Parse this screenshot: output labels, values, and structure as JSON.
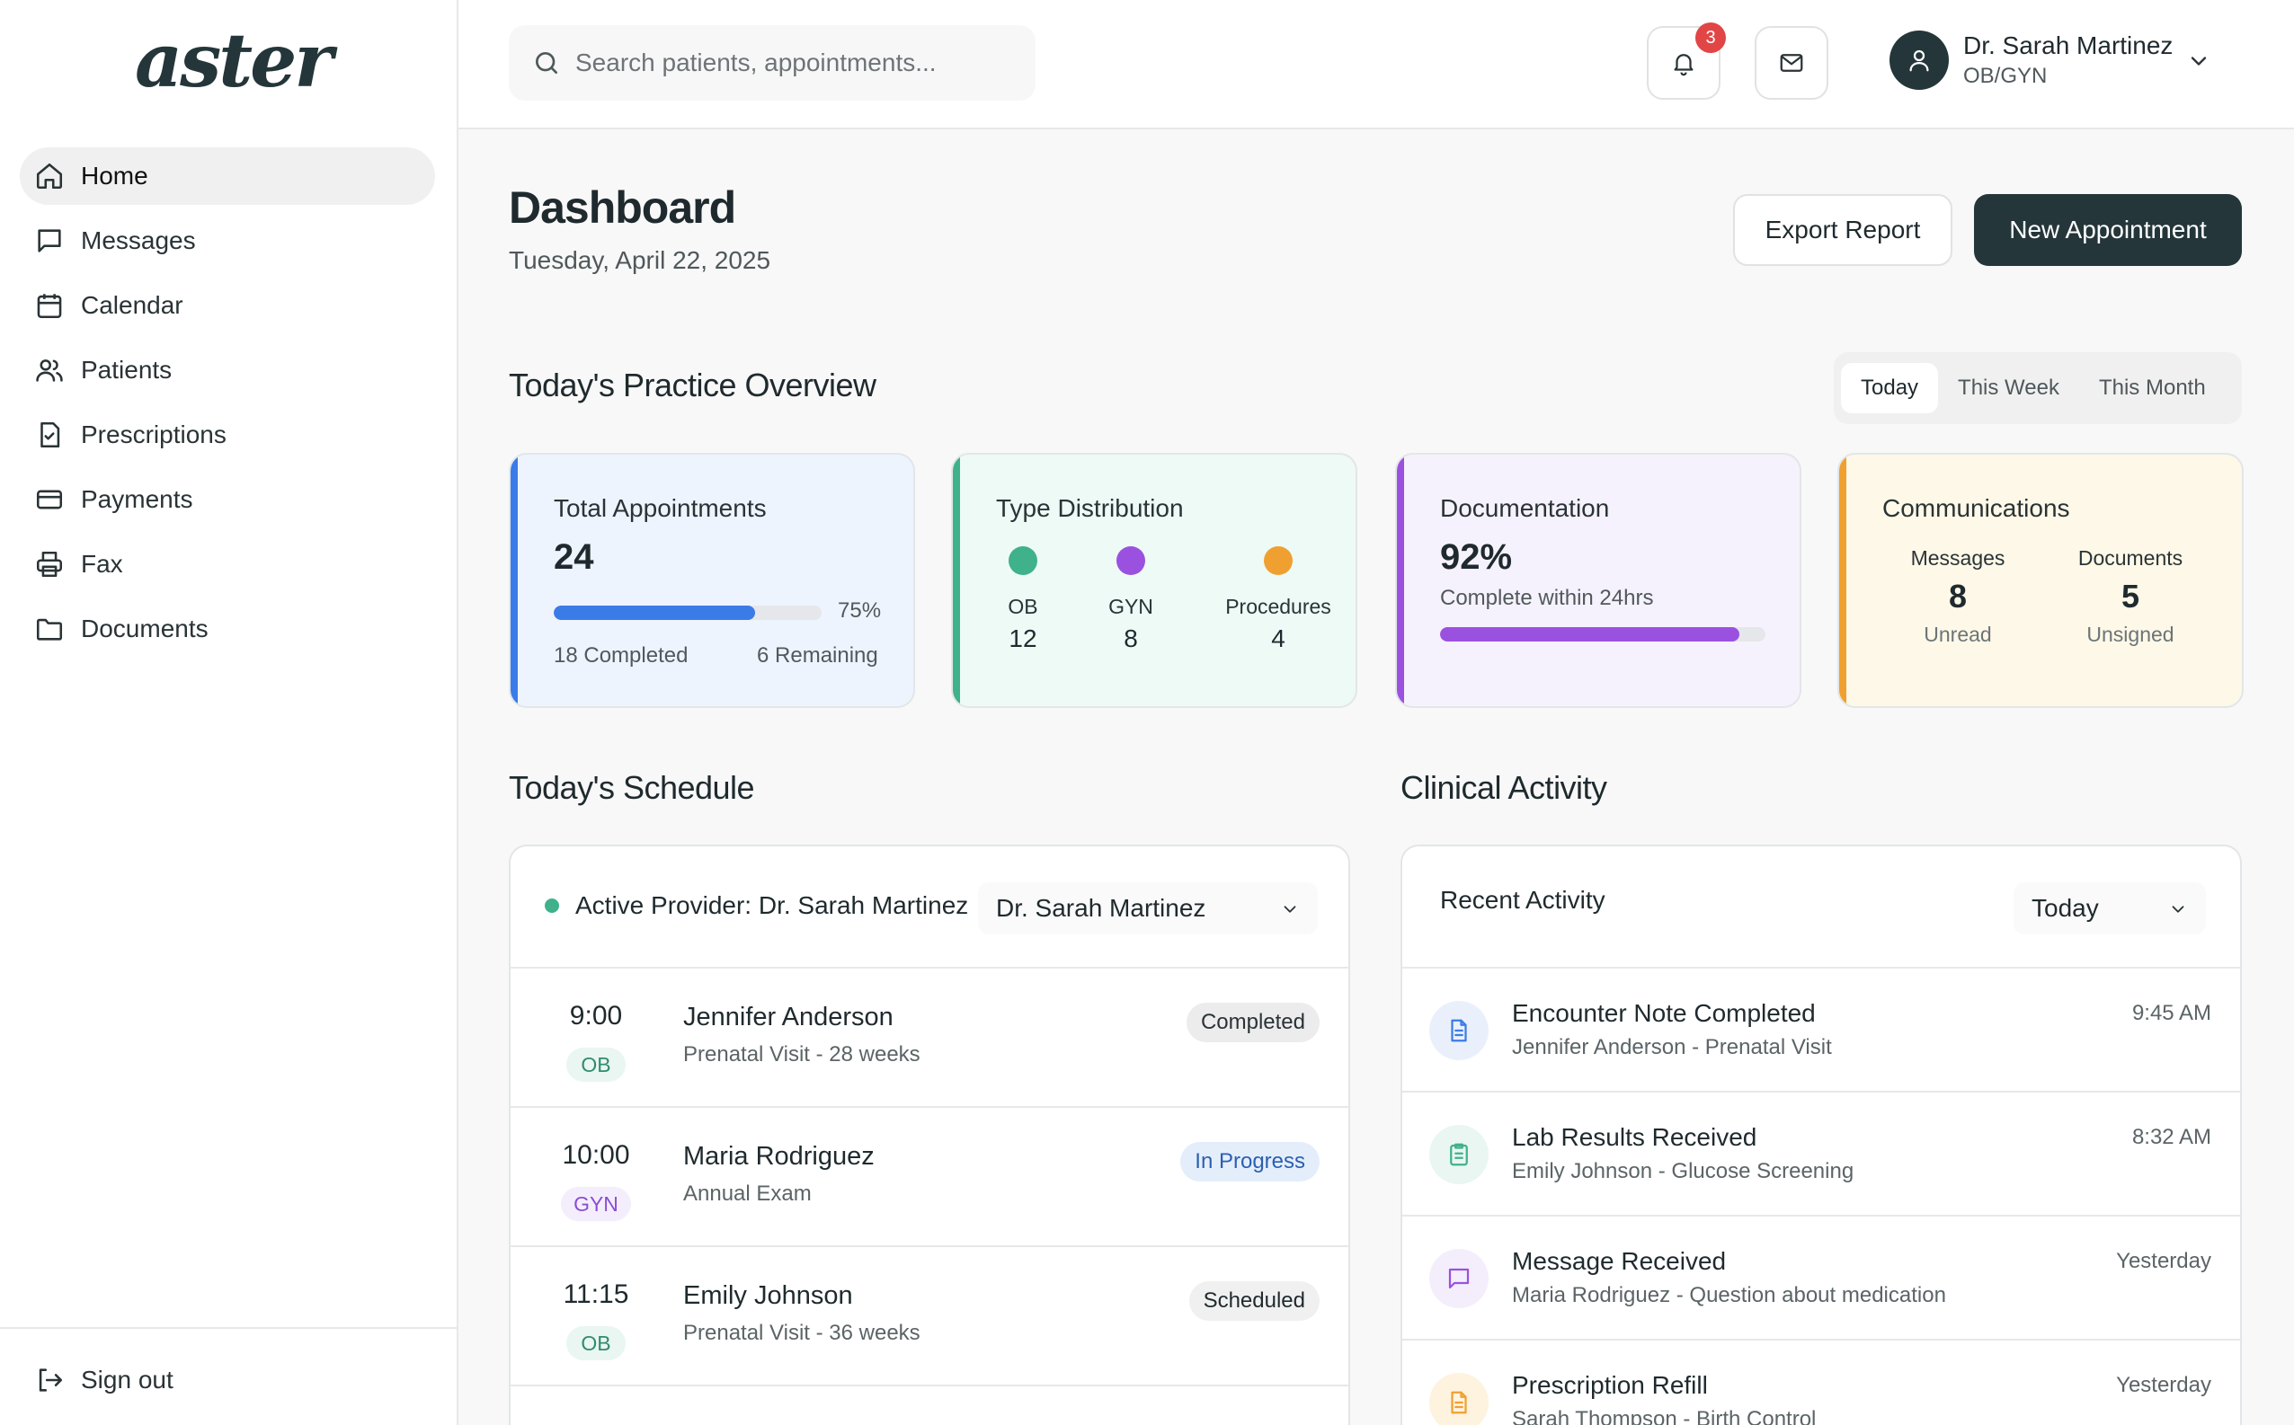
{
  "app": {
    "logo": "aster"
  },
  "sidebar": {
    "items": [
      {
        "label": "Home",
        "icon": "home-icon"
      },
      {
        "label": "Messages",
        "icon": "message-icon"
      },
      {
        "label": "Calendar",
        "icon": "calendar-icon"
      },
      {
        "label": "Patients",
        "icon": "users-icon"
      },
      {
        "label": "Prescriptions",
        "icon": "prescription-icon"
      },
      {
        "label": "Payments",
        "icon": "credit-card-icon"
      },
      {
        "label": "Fax",
        "icon": "printer-icon"
      },
      {
        "label": "Documents",
        "icon": "folder-icon"
      }
    ],
    "signout": "Sign out"
  },
  "topbar": {
    "search_placeholder": "Search patients, appointments...",
    "notifications_count": "3",
    "user_name": "Dr. Sarah Martinez",
    "user_role": "OB/GYN"
  },
  "header": {
    "title": "Dashboard",
    "date": "Tuesday, April 22, 2025",
    "export_label": "Export Report",
    "new_label": "New Appointment"
  },
  "overview": {
    "title": "Today's Practice Overview",
    "tabs": [
      "Today",
      "This Week",
      "This Month"
    ],
    "total": {
      "title": "Total Appointments",
      "value": "24",
      "percent": "75%",
      "completed": "18 Completed",
      "remaining": "6 Remaining"
    },
    "distribution": {
      "title": "Type Distribution",
      "items": [
        {
          "label": "OB",
          "value": "12",
          "color": "#3fb18b"
        },
        {
          "label": "GYN",
          "value": "8",
          "color": "#9b51e0"
        },
        {
          "label": "Procedures",
          "value": "4",
          "color": "#f0a030"
        }
      ]
    },
    "documentation": {
      "title": "Documentation",
      "value": "92%",
      "sub": "Complete within 24hrs"
    },
    "communications": {
      "title": "Communications",
      "messages_label": "Messages",
      "messages_value": "8",
      "messages_sub": "Unread",
      "documents_label": "Documents",
      "documents_value": "5",
      "documents_sub": "Unsigned"
    }
  },
  "schedule": {
    "title": "Today's Schedule",
    "provider_label": "Active Provider: Dr. Sarah Martinez",
    "provider_select": "Dr. Sarah Martinez",
    "rows": [
      {
        "time": "9:00",
        "tag": "OB",
        "name": "Jennifer Anderson",
        "sub": "Prenatal Visit - 28 weeks",
        "status": "Completed"
      },
      {
        "time": "10:00",
        "tag": "GYN",
        "name": "Maria Rodriguez",
        "sub": "Annual Exam",
        "status": "In Progress"
      },
      {
        "time": "11:15",
        "tag": "OB",
        "name": "Emily Johnson",
        "sub": "Prenatal Visit - 36 weeks",
        "status": "Scheduled"
      }
    ]
  },
  "activity": {
    "title": "Clinical Activity",
    "recent_label": "Recent Activity",
    "filter": "Today",
    "rows": [
      {
        "title": "Encounter Note Completed",
        "sub": "Jennifer Anderson - Prenatal Visit",
        "time": "9:45 AM",
        "icon": "document-icon"
      },
      {
        "title": "Lab Results Received",
        "sub": "Emily Johnson - Glucose Screening",
        "time": "8:32 AM",
        "icon": "clipboard-icon"
      },
      {
        "title": "Message Received",
        "sub": "Maria Rodriguez - Question about medication",
        "time": "Yesterday",
        "icon": "message-icon"
      },
      {
        "title": "Prescription Refill",
        "sub": "Sarah Thompson - Birth Control",
        "time": "Yesterday",
        "icon": "prescription-icon"
      }
    ]
  },
  "colors": {
    "brand": "#24363a",
    "blue": "#3b7be8",
    "green": "#3fb18b",
    "purple": "#9b51e0",
    "amber": "#f0a030"
  },
  "metrics": {
    "appointments_progress": 0.75,
    "documentation_progress": 0.92
  }
}
